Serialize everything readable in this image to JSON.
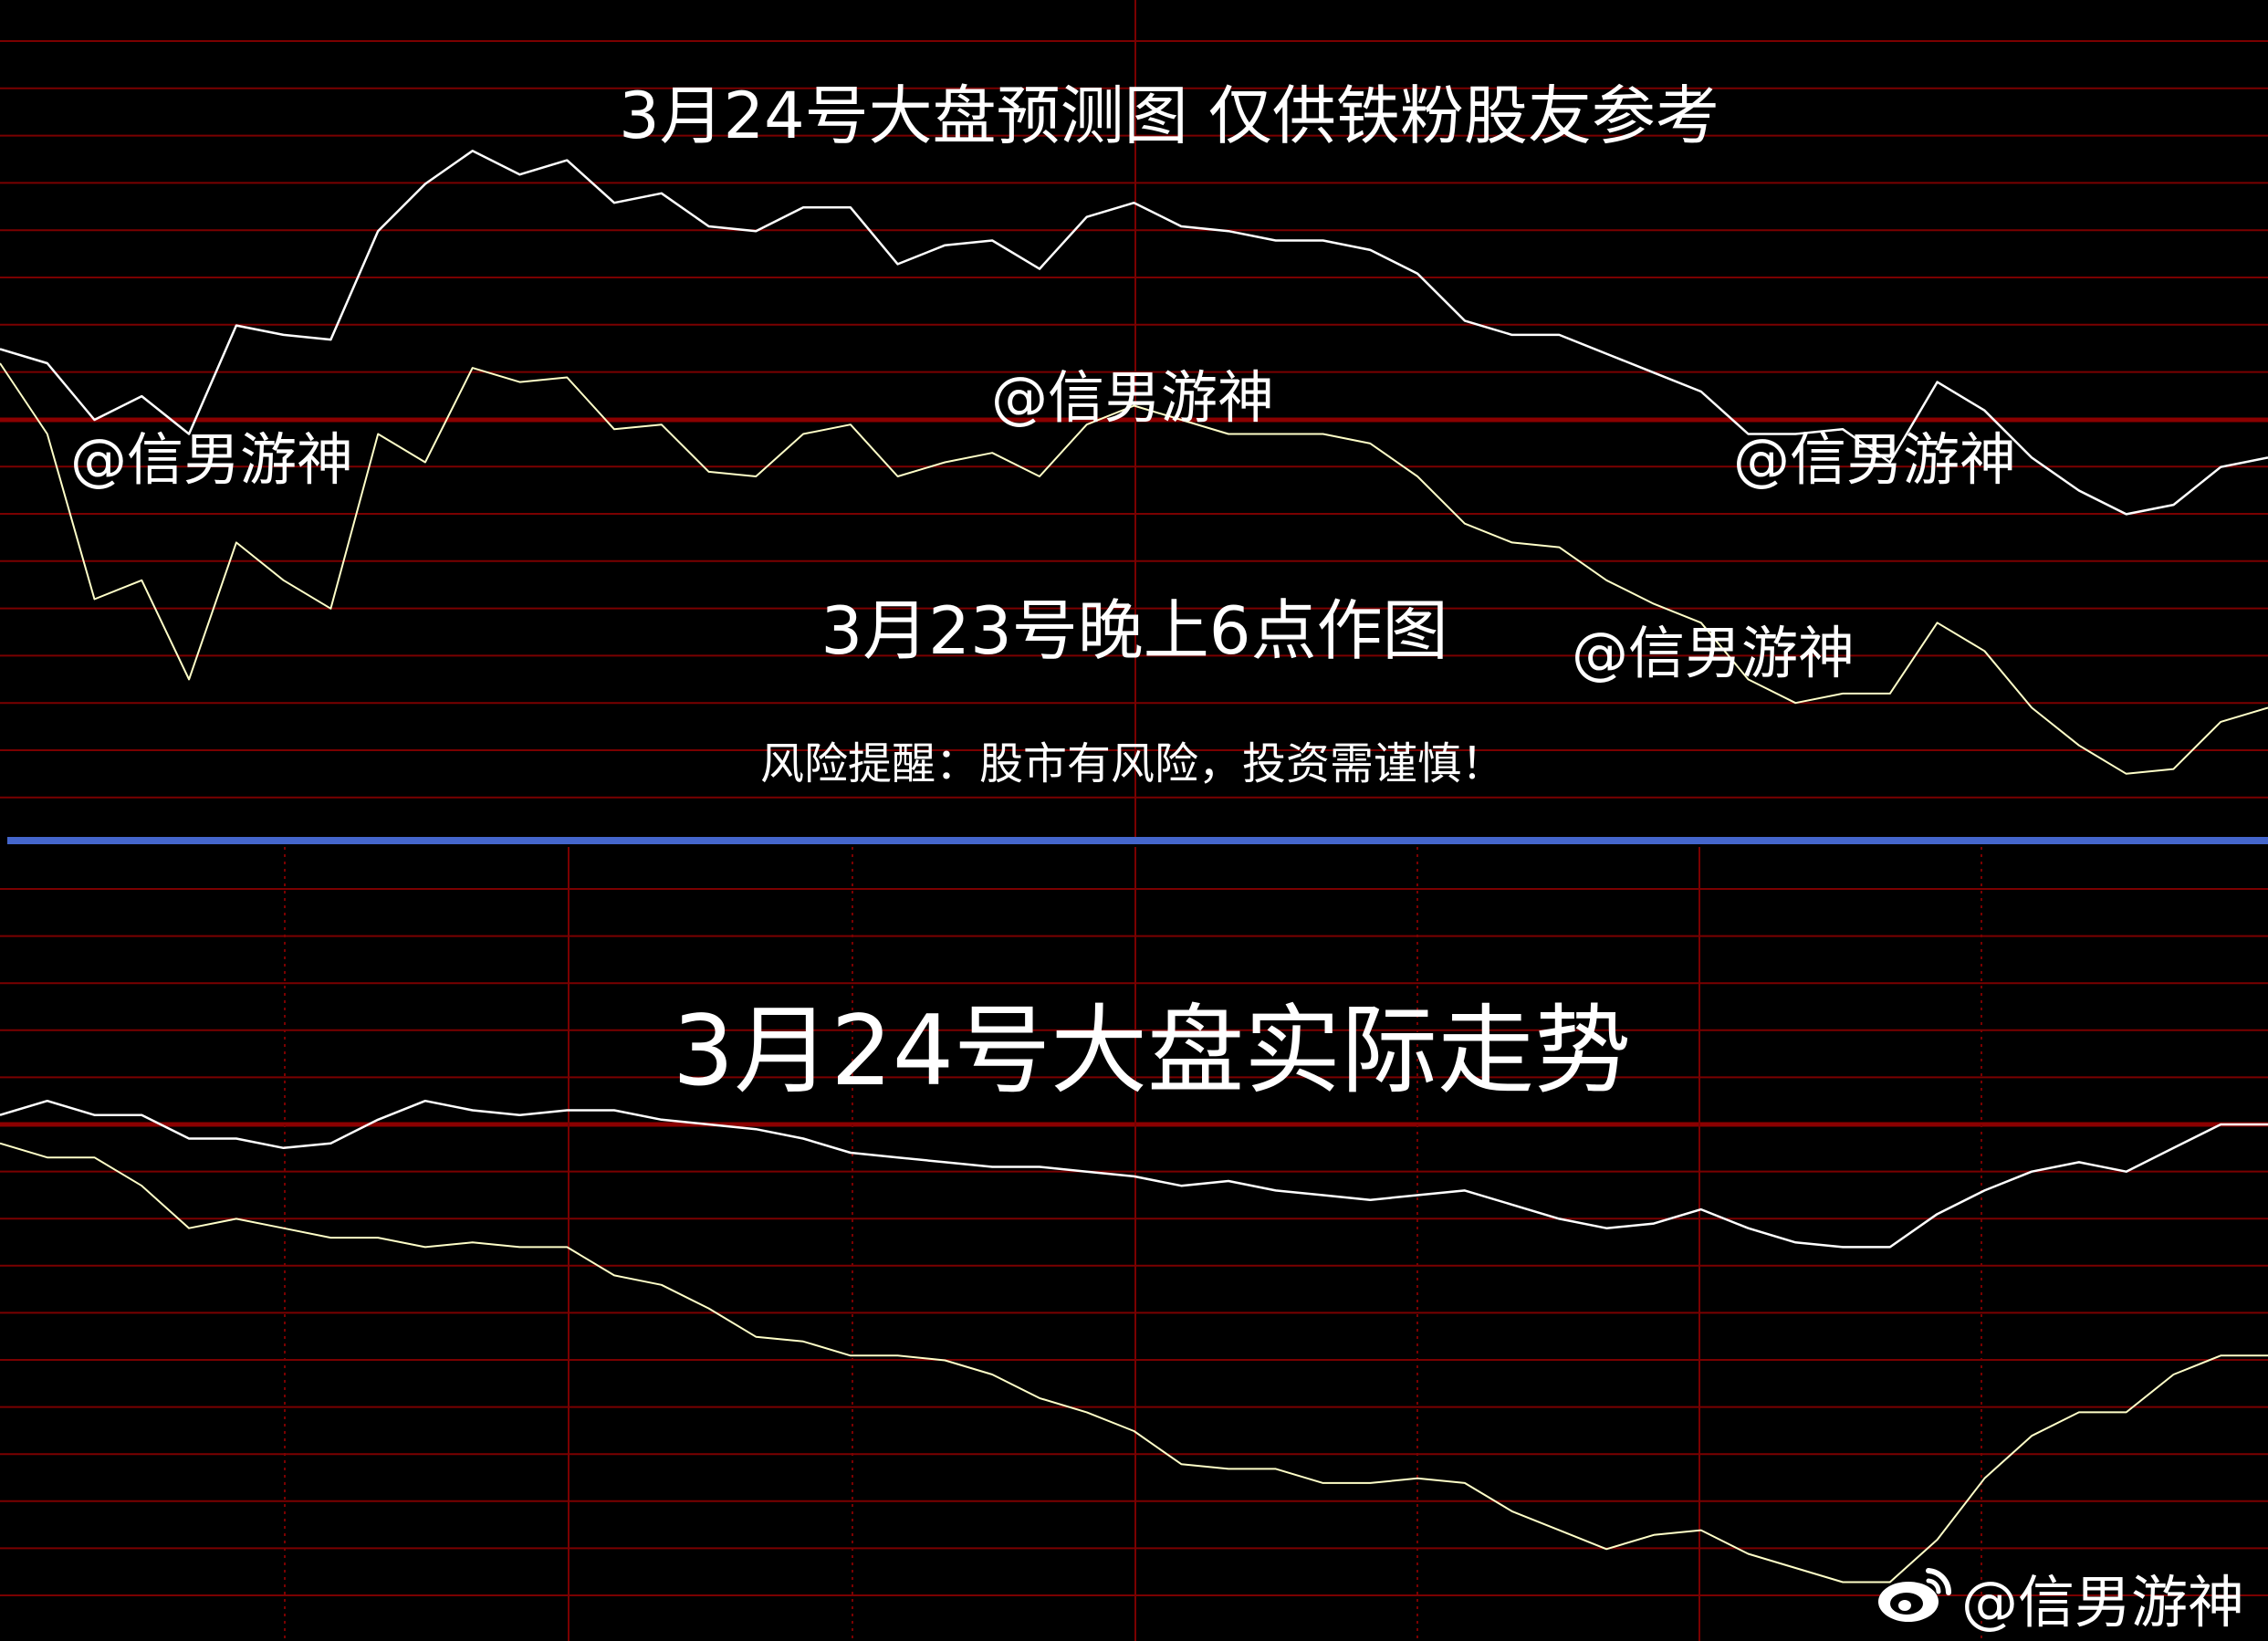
{
  "colors": {
    "background": "#000000",
    "grid": "#7a0000",
    "reference_line": "#8b0000",
    "divider": "#4466cc",
    "price_line": "#ffffff",
    "avg_line": "#ffffc8"
  },
  "texts": {
    "top_title": "3月24号大盘预测图 仅供铁粉股友参考",
    "watermark": "@信男游神",
    "made_note": "3月23号晚上6点作图",
    "risk_notice": "风险提醒：股市有风险，投资需谨慎！",
    "bottom_title": "3月24号大盘实际走势",
    "weibo_icon": "weibo-logo"
  },
  "chart_data": [
    {
      "type": "line",
      "title": "3月24号大盘预测图 仅供铁粉股友参考",
      "grid": true,
      "x": [
        0,
        5,
        10,
        15,
        20,
        25,
        30,
        35,
        40,
        45,
        50,
        55,
        60,
        65,
        70,
        75,
        80,
        85,
        90,
        95,
        100,
        105,
        110,
        115,
        120,
        125,
        130,
        135,
        140,
        145,
        150,
        155,
        160,
        165,
        170,
        175,
        180,
        185,
        190,
        195,
        200,
        205,
        210,
        215,
        220,
        225,
        230,
        235,
        240
      ],
      "series": [
        {
          "color": "#ffffff",
          "values": [
            1.5,
            1.2,
            0,
            0.5,
            -0.3,
            2.0,
            1.8,
            1.7,
            4.0,
            5.0,
            5.7,
            5.2,
            5.5,
            4.6,
            4.8,
            4.1,
            4.0,
            4.5,
            4.5,
            3.3,
            3.7,
            3.8,
            3.2,
            4.3,
            4.6,
            4.1,
            4.0,
            3.8,
            3.8,
            3.6,
            3.1,
            2.1,
            1.8,
            1.8,
            1.4,
            1.0,
            0.6,
            -0.3,
            -0.3,
            -0.2,
            -0.9,
            0.8,
            0.2,
            -0.8,
            -1.5,
            -2.0,
            -1.8,
            -1.0,
            -0.8
          ]
        },
        {
          "color": "#ffffc8",
          "values": [
            1.2,
            -0.3,
            -3.8,
            -3.4,
            -5.5,
            -2.6,
            -3.4,
            -4.0,
            -0.3,
            -0.9,
            1.1,
            0.8,
            0.9,
            -0.2,
            -0.1,
            -1.1,
            -1.2,
            -0.3,
            -0.1,
            -1.2,
            -0.9,
            -0.7,
            -1.2,
            -0.1,
            0.3,
            0,
            -0.3,
            -0.3,
            -0.3,
            -0.5,
            -1.2,
            -2.2,
            -2.6,
            -2.7,
            -3.4,
            -3.9,
            -4.3,
            -5.5,
            -6.0,
            -5.8,
            -5.8,
            -4.3,
            -4.9,
            -6.1,
            -6.9,
            -7.5,
            -7.4,
            -6.4,
            -6.1
          ]
        }
      ]
    },
    {
      "type": "line",
      "title": "3月24号大盘实际走势",
      "grid": true,
      "x": [
        0,
        5,
        10,
        15,
        20,
        25,
        30,
        35,
        40,
        45,
        50,
        55,
        60,
        65,
        70,
        75,
        80,
        85,
        90,
        95,
        100,
        105,
        110,
        115,
        120,
        125,
        130,
        135,
        140,
        145,
        150,
        155,
        160,
        165,
        170,
        175,
        180,
        185,
        190,
        195,
        200,
        205,
        210,
        215,
        220,
        225,
        230,
        235,
        240
      ],
      "series": [
        {
          "color": "#ffffff",
          "values": [
            0.2,
            0.5,
            0.2,
            0.2,
            -0.3,
            -0.3,
            -0.5,
            -0.4,
            0.1,
            0.5,
            0.3,
            0.2,
            0.3,
            0.3,
            0.1,
            0,
            -0.1,
            -0.3,
            -0.6,
            -0.7,
            -0.8,
            -0.9,
            -0.9,
            -1.0,
            -1.1,
            -1.3,
            -1.2,
            -1.4,
            -1.5,
            -1.6,
            -1.5,
            -1.4,
            -1.7,
            -2.0,
            -2.2,
            -2.1,
            -1.8,
            -2.2,
            -2.5,
            -2.6,
            -2.6,
            -1.9,
            -1.4,
            -1.0,
            -0.8,
            -1.0,
            -0.5,
            0,
            0
          ]
        },
        {
          "color": "#ffffc8",
          "values": [
            -0.4,
            -0.7,
            -0.7,
            -1.3,
            -2.2,
            -2.0,
            -2.2,
            -2.4,
            -2.4,
            -2.6,
            -2.5,
            -2.6,
            -2.6,
            -3.2,
            -3.4,
            -3.9,
            -4.5,
            -4.6,
            -4.9,
            -4.9,
            -5.0,
            -5.3,
            -5.8,
            -6.1,
            -6.5,
            -7.2,
            -7.3,
            -7.3,
            -7.6,
            -7.6,
            -7.5,
            -7.6,
            -8.2,
            -8.6,
            -9.0,
            -8.7,
            -8.6,
            -9.1,
            -9.4,
            -9.7,
            -9.7,
            -8.8,
            -7.5,
            -6.6,
            -6.1,
            -6.1,
            -5.3,
            -4.9,
            -4.9
          ]
        }
      ]
    }
  ]
}
